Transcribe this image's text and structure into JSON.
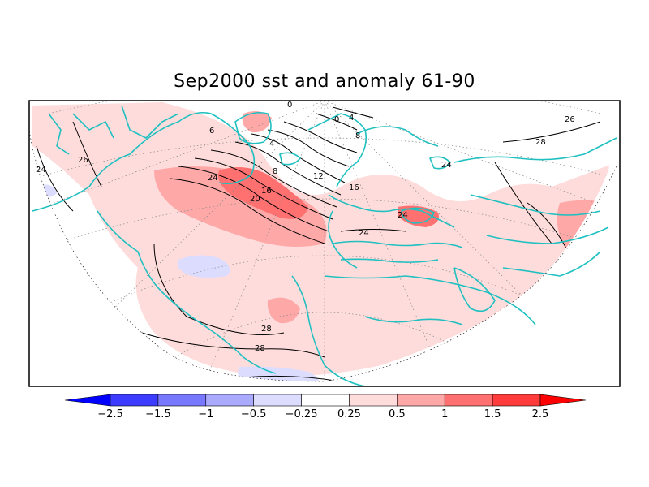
{
  "title": "Sep2000 sst and anomaly 61-90",
  "contour_labels": [
    "24",
    "26",
    "26",
    "28",
    "6",
    "4",
    "0",
    "8",
    "12",
    "16",
    "20",
    "24",
    "16",
    "8",
    "4",
    "0",
    "24",
    "24",
    "26",
    "28",
    "28",
    "24",
    "24"
  ],
  "colorbar": {
    "ticks": [
      "−2.5",
      "−1.5",
      "−1",
      "−0.5",
      "−0.25",
      "0.25",
      "0.5",
      "1",
      "1.5",
      "2.5"
    ],
    "colors": [
      "#0000ff",
      "#3c3cff",
      "#7878ff",
      "#aaaaff",
      "#dcdcff",
      "#ffffff",
      "#ffdcdc",
      "#ffa8a8",
      "#ff7070",
      "#ff3c3c",
      "#ff0000"
    ]
  },
  "colors": {
    "coast": "#20c0c0",
    "anomaly_warm_light": "#ffdcdc",
    "anomaly_warm_mid": "#ffa8a8",
    "anomaly_warm_strong": "#ff7070",
    "anomaly_cool_light": "#dcdcff"
  }
}
